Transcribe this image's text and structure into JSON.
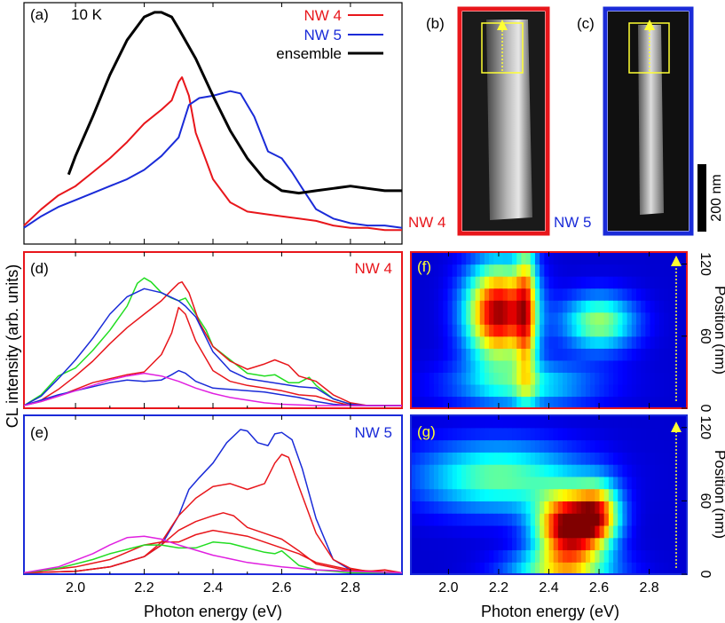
{
  "figure": {
    "ylabel_shared": "CL intensity (arb. units)",
    "xlabel_left": "Photon energy (eV)",
    "xlabel_right": "Photon energy (eV)",
    "colors": {
      "nw4": "#e8161b",
      "nw5": "#1a2bd8",
      "ensemble": "#000000",
      "green": "#22dd22",
      "magenta": "#e020e0",
      "marker": "#ffff33"
    }
  },
  "panels": {
    "a": {
      "tag": "(a)",
      "temperature": "10 K",
      "legend": [
        {
          "label": "NW 4",
          "color": "#e8161b"
        },
        {
          "label": "NW 5",
          "color": "#1a2bd8"
        },
        {
          "label": "ensemble",
          "color": "#000000"
        }
      ]
    },
    "b": {
      "tag": "(b)",
      "label": "NW 4"
    },
    "c": {
      "tag": "(c)",
      "label": "NW 5",
      "scalebar": "200 nm"
    },
    "d": {
      "tag": "(d)",
      "label": "NW 4"
    },
    "e": {
      "tag": "(e)",
      "label": "NW 5"
    },
    "f": {
      "tag": "(f)",
      "ylabel": "Position (nm)",
      "yticks": [
        "0",
        "60",
        "120"
      ]
    },
    "g": {
      "tag": "(g)",
      "ylabel": "Position (nm)",
      "yticks": [
        "0",
        "60",
        "120"
      ]
    }
  },
  "chart_data": [
    {
      "panel": "a",
      "type": "line",
      "xlim": [
        1.85,
        2.95
      ],
      "ylim": [
        0,
        1.0
      ],
      "xticks": [
        "2.0",
        "2.2",
        "2.4",
        "2.6",
        "2.8"
      ],
      "series": [
        {
          "name": "NW 4",
          "color": "#e8161b",
          "x": [
            1.85,
            1.9,
            1.95,
            2.0,
            2.05,
            2.1,
            2.15,
            2.2,
            2.25,
            2.28,
            2.3,
            2.31,
            2.33,
            2.35,
            2.38,
            2.4,
            2.45,
            2.5,
            2.55,
            2.6,
            2.65,
            2.7,
            2.75,
            2.8,
            2.85,
            2.9,
            2.95
          ],
          "y": [
            0.08,
            0.15,
            0.21,
            0.25,
            0.31,
            0.37,
            0.44,
            0.52,
            0.58,
            0.62,
            0.7,
            0.72,
            0.64,
            0.48,
            0.36,
            0.28,
            0.18,
            0.14,
            0.13,
            0.12,
            0.11,
            0.1,
            0.08,
            0.07,
            0.07,
            0.06,
            0.06
          ]
        },
        {
          "name": "NW 5",
          "color": "#1a2bd8",
          "x": [
            1.85,
            1.9,
            1.95,
            2.0,
            2.05,
            2.1,
            2.15,
            2.2,
            2.25,
            2.3,
            2.33,
            2.36,
            2.4,
            2.45,
            2.48,
            2.52,
            2.56,
            2.6,
            2.63,
            2.66,
            2.7,
            2.75,
            2.8,
            2.85,
            2.9,
            2.95
          ],
          "y": [
            0.07,
            0.12,
            0.16,
            0.19,
            0.22,
            0.25,
            0.28,
            0.32,
            0.38,
            0.46,
            0.6,
            0.63,
            0.64,
            0.66,
            0.65,
            0.55,
            0.4,
            0.37,
            0.31,
            0.24,
            0.15,
            0.11,
            0.09,
            0.08,
            0.08,
            0.07
          ]
        },
        {
          "name": "ensemble",
          "color": "#000000",
          "x": [
            1.98,
            2.0,
            2.05,
            2.1,
            2.15,
            2.2,
            2.23,
            2.25,
            2.28,
            2.3,
            2.35,
            2.4,
            2.45,
            2.5,
            2.55,
            2.6,
            2.65,
            2.7,
            2.75,
            2.8,
            2.85,
            2.9,
            2.95
          ],
          "y": [
            0.3,
            0.38,
            0.55,
            0.73,
            0.88,
            0.98,
            1.0,
            1.0,
            0.98,
            0.93,
            0.8,
            0.64,
            0.49,
            0.37,
            0.28,
            0.23,
            0.22,
            0.23,
            0.24,
            0.25,
            0.24,
            0.23,
            0.23
          ]
        }
      ]
    },
    {
      "panel": "d",
      "type": "line",
      "xlim": [
        1.85,
        2.95
      ],
      "ylim": [
        0,
        1.0
      ],
      "series": [
        {
          "color": "#22dd22",
          "x": [
            1.85,
            1.9,
            1.95,
            2.0,
            2.05,
            2.1,
            2.15,
            2.18,
            2.2,
            2.22,
            2.25,
            2.28,
            2.3,
            2.32,
            2.35,
            2.38,
            2.4,
            2.45,
            2.5,
            2.55,
            2.58,
            2.62,
            2.65,
            2.68,
            2.7,
            2.75,
            2.8,
            2.85,
            2.95
          ],
          "y": [
            0.02,
            0.1,
            0.24,
            0.3,
            0.43,
            0.58,
            0.76,
            0.93,
            0.97,
            0.94,
            0.86,
            0.82,
            0.8,
            0.82,
            0.7,
            0.58,
            0.46,
            0.36,
            0.26,
            0.24,
            0.25,
            0.19,
            0.19,
            0.23,
            0.17,
            0.07,
            0.03,
            0.02,
            0.02
          ]
        },
        {
          "color": "#e8161b",
          "x": [
            1.85,
            1.9,
            1.95,
            2.0,
            2.05,
            2.1,
            2.15,
            2.2,
            2.25,
            2.28,
            2.3,
            2.31,
            2.33,
            2.36,
            2.4,
            2.45,
            2.5,
            2.55,
            2.58,
            2.62,
            2.65,
            2.7,
            2.75,
            2.8,
            2.85,
            2.95
          ],
          "y": [
            0.02,
            0.06,
            0.14,
            0.24,
            0.35,
            0.48,
            0.6,
            0.7,
            0.8,
            0.88,
            0.93,
            0.94,
            0.86,
            0.64,
            0.46,
            0.35,
            0.29,
            0.33,
            0.36,
            0.32,
            0.24,
            0.2,
            0.1,
            0.04,
            0.02,
            0.02
          ]
        },
        {
          "color": "#1a2bd8",
          "x": [
            1.85,
            1.9,
            1.95,
            2.0,
            2.05,
            2.1,
            2.15,
            2.2,
            2.25,
            2.3,
            2.32,
            2.35,
            2.4,
            2.45,
            2.5,
            2.55,
            2.6,
            2.65,
            2.7,
            2.75,
            2.8,
            2.85,
            2.95
          ],
          "y": [
            0.02,
            0.09,
            0.22,
            0.36,
            0.52,
            0.7,
            0.83,
            0.89,
            0.86,
            0.8,
            0.76,
            0.68,
            0.42,
            0.28,
            0.22,
            0.2,
            0.18,
            0.16,
            0.15,
            0.07,
            0.03,
            0.02,
            0.02
          ]
        },
        {
          "color": "#e8161b",
          "x": [
            1.85,
            1.9,
            1.95,
            2.0,
            2.05,
            2.1,
            2.15,
            2.2,
            2.25,
            2.28,
            2.3,
            2.32,
            2.35,
            2.4,
            2.45,
            2.5,
            2.55,
            2.6,
            2.65,
            2.7,
            2.75,
            2.8,
            2.85,
            2.95
          ],
          "y": [
            0.02,
            0.05,
            0.09,
            0.14,
            0.19,
            0.22,
            0.25,
            0.27,
            0.4,
            0.56,
            0.75,
            0.7,
            0.5,
            0.28,
            0.2,
            0.17,
            0.15,
            0.13,
            0.1,
            0.09,
            0.05,
            0.02,
            0.02,
            0.02
          ]
        },
        {
          "color": "#1a2bd8",
          "x": [
            1.85,
            1.9,
            1.95,
            2.0,
            2.05,
            2.1,
            2.15,
            2.2,
            2.25,
            2.28,
            2.3,
            2.32,
            2.35,
            2.4,
            2.45,
            2.5,
            2.55,
            2.6,
            2.65,
            2.7,
            2.75,
            2.8,
            2.85,
            2.95
          ],
          "y": [
            0.02,
            0.06,
            0.1,
            0.13,
            0.16,
            0.19,
            0.21,
            0.2,
            0.21,
            0.25,
            0.28,
            0.26,
            0.2,
            0.15,
            0.14,
            0.13,
            0.12,
            0.1,
            0.08,
            0.05,
            0.03,
            0.02,
            0.02,
            0.02
          ]
        },
        {
          "color": "#e020e0",
          "x": [
            1.85,
            1.9,
            1.95,
            2.0,
            2.05,
            2.1,
            2.15,
            2.2,
            2.25,
            2.3,
            2.35,
            2.4,
            2.45,
            2.5,
            2.55,
            2.6,
            2.7,
            2.8,
            2.95
          ],
          "y": [
            0.02,
            0.05,
            0.09,
            0.13,
            0.17,
            0.21,
            0.24,
            0.26,
            0.24,
            0.2,
            0.15,
            0.11,
            0.08,
            0.06,
            0.04,
            0.03,
            0.02,
            0.02,
            0.02
          ]
        }
      ]
    },
    {
      "panel": "e",
      "type": "line",
      "xlim": [
        1.85,
        2.95
      ],
      "ylim": [
        0,
        1.0
      ],
      "series": [
        {
          "color": "#1a2bd8",
          "x": [
            1.85,
            2.0,
            2.1,
            2.2,
            2.25,
            2.3,
            2.33,
            2.36,
            2.4,
            2.44,
            2.48,
            2.5,
            2.53,
            2.56,
            2.58,
            2.6,
            2.63,
            2.66,
            2.7,
            2.75,
            2.8,
            2.85,
            2.95
          ],
          "y": [
            0.01,
            0.02,
            0.05,
            0.12,
            0.2,
            0.4,
            0.58,
            0.66,
            0.76,
            0.9,
            0.99,
            0.98,
            0.9,
            0.88,
            0.96,
            0.97,
            0.92,
            0.72,
            0.38,
            0.1,
            0.03,
            0.01,
            0.01
          ]
        },
        {
          "color": "#e8161b",
          "x": [
            1.85,
            2.0,
            2.1,
            2.2,
            2.25,
            2.3,
            2.35,
            2.4,
            2.45,
            2.5,
            2.55,
            2.58,
            2.6,
            2.62,
            2.65,
            2.7,
            2.75,
            2.8,
            2.85,
            2.9,
            2.95
          ],
          "y": [
            0.01,
            0.02,
            0.05,
            0.12,
            0.22,
            0.4,
            0.52,
            0.6,
            0.62,
            0.58,
            0.62,
            0.76,
            0.82,
            0.8,
            0.6,
            0.28,
            0.1,
            0.04,
            0.02,
            0.03,
            0.01
          ]
        },
        {
          "color": "#e8161b",
          "x": [
            1.85,
            2.0,
            2.1,
            2.2,
            2.25,
            2.3,
            2.35,
            2.4,
            2.43,
            2.46,
            2.5,
            2.55,
            2.6,
            2.65,
            2.7,
            2.8,
            2.95
          ],
          "y": [
            0.01,
            0.02,
            0.05,
            0.12,
            0.2,
            0.3,
            0.36,
            0.4,
            0.42,
            0.4,
            0.32,
            0.28,
            0.24,
            0.16,
            0.07,
            0.02,
            0.01
          ]
        },
        {
          "color": "#e8161b",
          "x": [
            1.85,
            2.0,
            2.1,
            2.15,
            2.2,
            2.25,
            2.3,
            2.35,
            2.4,
            2.45,
            2.5,
            2.55,
            2.6,
            2.65,
            2.7,
            2.8,
            2.95
          ],
          "y": [
            0.01,
            0.05,
            0.1,
            0.15,
            0.2,
            0.22,
            0.22,
            0.27,
            0.3,
            0.28,
            0.26,
            0.22,
            0.18,
            0.14,
            0.08,
            0.03,
            0.01
          ]
        },
        {
          "color": "#22dd22",
          "x": [
            1.85,
            1.95,
            2.05,
            2.1,
            2.15,
            2.2,
            2.25,
            2.3,
            2.35,
            2.4,
            2.45,
            2.5,
            2.55,
            2.58,
            2.6,
            2.62,
            2.65,
            2.7,
            2.8,
            2.95
          ],
          "y": [
            0.01,
            0.04,
            0.1,
            0.14,
            0.17,
            0.2,
            0.2,
            0.18,
            0.18,
            0.22,
            0.21,
            0.18,
            0.15,
            0.14,
            0.16,
            0.12,
            0.06,
            0.03,
            0.01,
            0.01
          ]
        },
        {
          "color": "#e020e0",
          "x": [
            1.85,
            1.95,
            2.05,
            2.1,
            2.15,
            2.2,
            2.25,
            2.3,
            2.4,
            2.5,
            2.6,
            2.7,
            2.8,
            2.95
          ],
          "y": [
            0.01,
            0.05,
            0.14,
            0.2,
            0.25,
            0.26,
            0.24,
            0.2,
            0.13,
            0.08,
            0.05,
            0.03,
            0.02,
            0.01
          ]
        }
      ]
    },
    {
      "panel": "f",
      "type": "heatmap",
      "xlim": [
        1.85,
        2.95
      ],
      "ylim": [
        0,
        130
      ],
      "xlabel": "Photon energy (eV)",
      "ylabel": "Position (nm)",
      "rows": 13,
      "hotspots": [
        {
          "x": 2.2,
          "y": 80,
          "sx": 0.09,
          "sy": 28,
          "amp": 0.9
        },
        {
          "x": 2.31,
          "y": 80,
          "sx": 0.03,
          "sy": 50,
          "amp": 0.45
        },
        {
          "x": 2.6,
          "y": 72,
          "sx": 0.1,
          "sy": 16,
          "amp": 0.45
        },
        {
          "x": 2.3,
          "y": 20,
          "sx": 0.2,
          "sy": 14,
          "amp": 0.3
        }
      ]
    },
    {
      "panel": "g",
      "type": "heatmap",
      "xlim": [
        1.85,
        2.95
      ],
      "ylim": [
        0,
        130
      ],
      "xlabel": "Photon energy (eV)",
      "ylabel": "Position (nm)",
      "rows": 13,
      "hotspots": [
        {
          "x": 2.48,
          "y": 38,
          "sx": 0.09,
          "sy": 20,
          "amp": 0.95
        },
        {
          "x": 2.6,
          "y": 50,
          "sx": 0.06,
          "sy": 18,
          "amp": 0.55
        },
        {
          "x": 2.2,
          "y": 80,
          "sx": 0.22,
          "sy": 20,
          "amp": 0.4
        },
        {
          "x": 2.45,
          "y": 5,
          "sx": 0.15,
          "sy": 10,
          "amp": 0.4
        }
      ]
    }
  ]
}
